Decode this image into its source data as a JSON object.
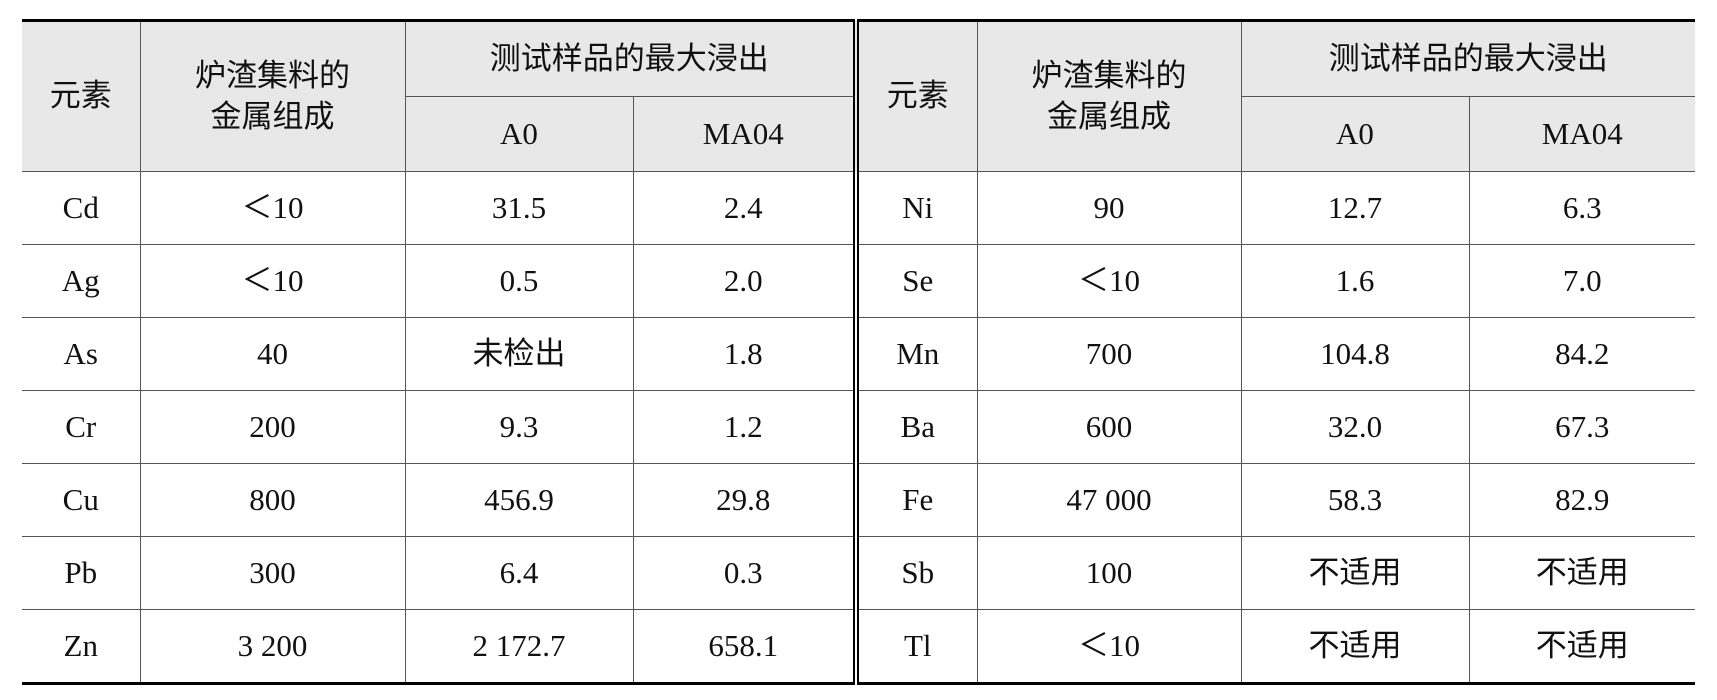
{
  "header": {
    "element": "元素",
    "composition": [
      "炉渣集料的",
      "金属组成"
    ],
    "leaching": "测试样品的最大浸出",
    "samples": [
      "A0",
      "MA04"
    ]
  },
  "rows": [
    [
      "Cd",
      "＜10",
      "31.5",
      "2.4",
      "Ni",
      "90",
      "12.7",
      "6.3"
    ],
    [
      "Ag",
      "＜10",
      "0.5",
      "2.0",
      "Se",
      "＜10",
      "1.6",
      "7.0"
    ],
    [
      "As",
      "40",
      "未检出",
      "1.8",
      "Mn",
      "700",
      "104.8",
      "84.2"
    ],
    [
      "Cr",
      "200",
      "9.3",
      "1.2",
      "Ba",
      "600",
      "32.0",
      "67.3"
    ],
    [
      "Cu",
      "800",
      "456.9",
      "29.8",
      "Fe",
      "47 000",
      "58.3",
      "82.9"
    ],
    [
      "Pb",
      "300",
      "6.4",
      "0.3",
      "Sb",
      "100",
      "不适用",
      "不适用"
    ],
    [
      "Zn",
      "3 200",
      "2 172.7",
      "658.1",
      "Tl",
      "＜10",
      "不适用",
      "不适用"
    ]
  ]
}
